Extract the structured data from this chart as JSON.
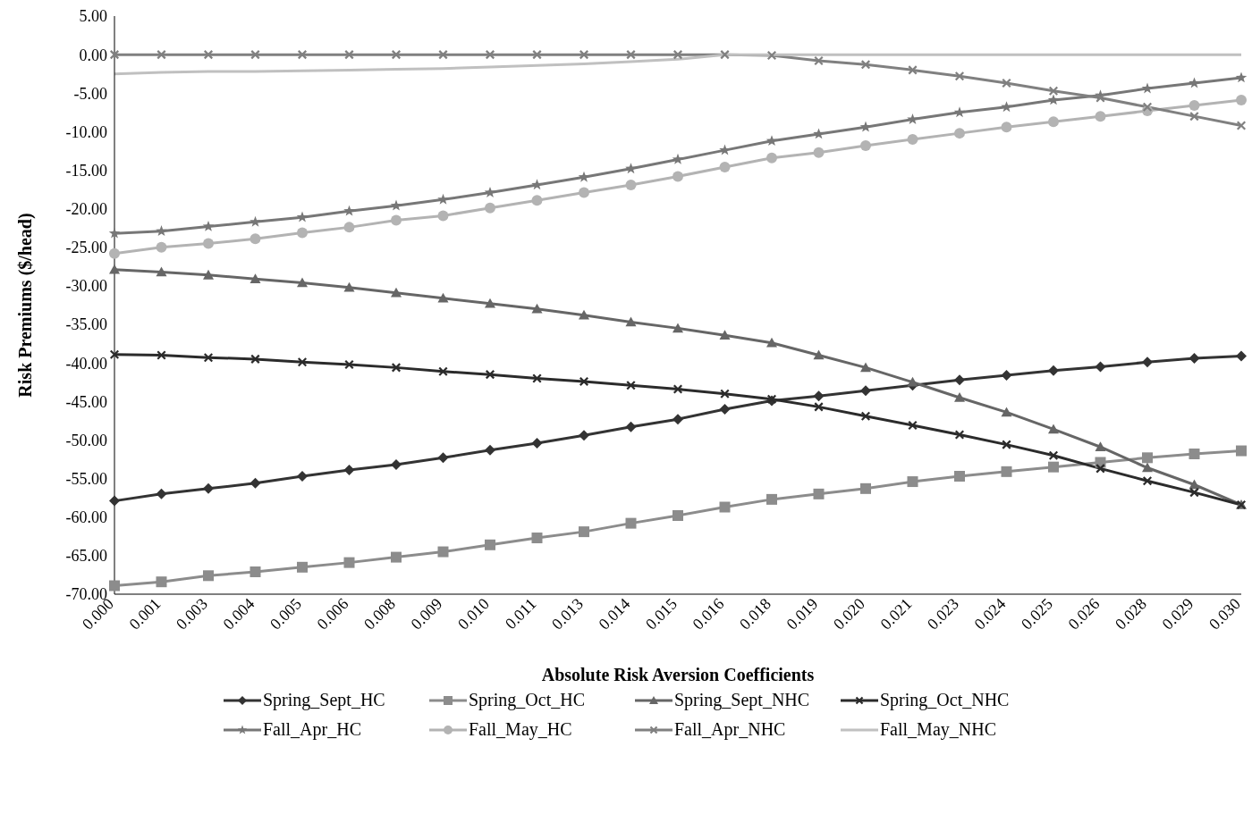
{
  "chart_data": {
    "type": "line",
    "xlabel": "Absolute Risk Aversion Coefficients",
    "ylabel": "Risk Premiums ($/head)",
    "categories": [
      "0.000",
      "0.001",
      "0.003",
      "0.004",
      "0.005",
      "0.006",
      "0.008",
      "0.009",
      "0.010",
      "0.011",
      "0.013",
      "0.014",
      "0.015",
      "0.016",
      "0.018",
      "0.019",
      "0.020",
      "0.021",
      "0.023",
      "0.024",
      "0.025",
      "0.026",
      "0.028",
      "0.029",
      "0.030"
    ],
    "ylim": [
      -70,
      5
    ],
    "yticks": [
      {
        "value": -70,
        "label": "-70.00"
      },
      {
        "value": -65,
        "label": "-65.00"
      },
      {
        "value": -60,
        "label": "-60.00"
      },
      {
        "value": -55,
        "label": "-55.00"
      },
      {
        "value": -50,
        "label": "-50.00"
      },
      {
        "value": -45,
        "label": "-45.00"
      },
      {
        "value": -40,
        "label": "-40.00"
      },
      {
        "value": -35,
        "label": "-35.00"
      },
      {
        "value": -30,
        "label": "-30.00"
      },
      {
        "value": -25,
        "label": "-25.00"
      },
      {
        "value": -20,
        "label": "-20.00"
      },
      {
        "value": -15,
        "label": "-15.00"
      },
      {
        "value": -10,
        "label": "-10.00"
      },
      {
        "value": -5,
        "label": "-5.00"
      },
      {
        "value": 0,
        "label": "0.00"
      },
      {
        "value": 5,
        "label": "5.00"
      }
    ],
    "legend": "bottom",
    "line_style": "solid",
    "series": [
      {
        "name": "Spring_Sept_HC",
        "color": "#333333",
        "marker": "diamond",
        "values": [
          -57.9,
          -57.0,
          -56.3,
          -55.6,
          -54.7,
          -53.9,
          -53.2,
          -52.3,
          -51.3,
          -50.4,
          -49.4,
          -48.3,
          -47.3,
          -46.0,
          -44.9,
          -44.3,
          -43.6,
          -42.9,
          -42.2,
          -41.6,
          -41.0,
          -40.5,
          -39.9,
          -39.4,
          -39.1
        ]
      },
      {
        "name": "Spring_Oct_HC",
        "color": "#8c8c8c",
        "marker": "square",
        "values": [
          -68.9,
          -68.4,
          -67.6,
          -67.1,
          -66.5,
          -65.9,
          -65.2,
          -64.5,
          -63.6,
          -62.7,
          -61.9,
          -60.8,
          -59.8,
          -58.7,
          -57.7,
          -57.0,
          -56.3,
          -55.4,
          -54.7,
          -54.1,
          -53.5,
          -52.9,
          -52.3,
          -51.8,
          -51.4
        ]
      },
      {
        "name": "Spring_Sept_NHC",
        "color": "#666666",
        "marker": "triangle",
        "values": [
          -27.9,
          -28.2,
          -28.6,
          -29.1,
          -29.6,
          -30.2,
          -30.9,
          -31.6,
          -32.3,
          -33.0,
          -33.8,
          -34.7,
          -35.5,
          -36.4,
          -37.4,
          -39.0,
          -40.6,
          -42.5,
          -44.5,
          -46.4,
          -48.6,
          -50.9,
          -53.6,
          -55.8,
          -58.4
        ]
      },
      {
        "name": "Spring_Oct_NHC",
        "color": "#2b2b2b",
        "marker": "cross",
        "values": [
          -38.9,
          -39.0,
          -39.3,
          -39.5,
          -39.9,
          -40.2,
          -40.6,
          -41.1,
          -41.5,
          -42.0,
          -42.4,
          -42.9,
          -43.4,
          -44.0,
          -44.7,
          -45.7,
          -46.9,
          -48.1,
          -49.3,
          -50.6,
          -52.0,
          -53.7,
          -55.3,
          -56.8,
          -58.4
        ]
      },
      {
        "name": "Fall_Apr_HC",
        "color": "#777777",
        "marker": "star",
        "values": [
          -23.2,
          -22.9,
          -22.3,
          -21.7,
          -21.1,
          -20.3,
          -19.6,
          -18.8,
          -17.9,
          -16.9,
          -15.9,
          -14.8,
          -13.6,
          -12.4,
          -11.2,
          -10.3,
          -9.4,
          -8.4,
          -7.5,
          -6.8,
          -5.9,
          -5.3,
          -4.4,
          -3.7,
          -3.0
        ]
      },
      {
        "name": "Fall_May_HC",
        "color": "#b3b3b3",
        "marker": "circle",
        "values": [
          -25.8,
          -25.0,
          -24.5,
          -23.9,
          -23.1,
          -22.4,
          -21.5,
          -20.9,
          -19.9,
          -18.9,
          -17.9,
          -16.9,
          -15.8,
          -14.6,
          -13.4,
          -12.7,
          -11.8,
          -11.0,
          -10.2,
          -9.4,
          -8.7,
          -8.0,
          -7.3,
          -6.6,
          -5.9
        ]
      },
      {
        "name": "Fall_Apr_NHC",
        "color": "#808080",
        "marker": "cross",
        "values": [
          0,
          0,
          0,
          0,
          0,
          0,
          0,
          0,
          0,
          0,
          0,
          0,
          0,
          0,
          -0.1,
          -0.8,
          -1.3,
          -2.0,
          -2.8,
          -3.7,
          -4.7,
          -5.6,
          -6.8,
          -8.0,
          -9.2
        ]
      },
      {
        "name": "Fall_May_NHC",
        "color": "#c0c0c0",
        "marker": "none",
        "values": [
          -2.5,
          -2.3,
          -2.2,
          -2.2,
          -2.1,
          -2.0,
          -1.9,
          -1.8,
          -1.6,
          -1.4,
          -1.2,
          -0.9,
          -0.6,
          0,
          0,
          0,
          0,
          0,
          0,
          0,
          0,
          0,
          0,
          0,
          0
        ]
      }
    ]
  }
}
